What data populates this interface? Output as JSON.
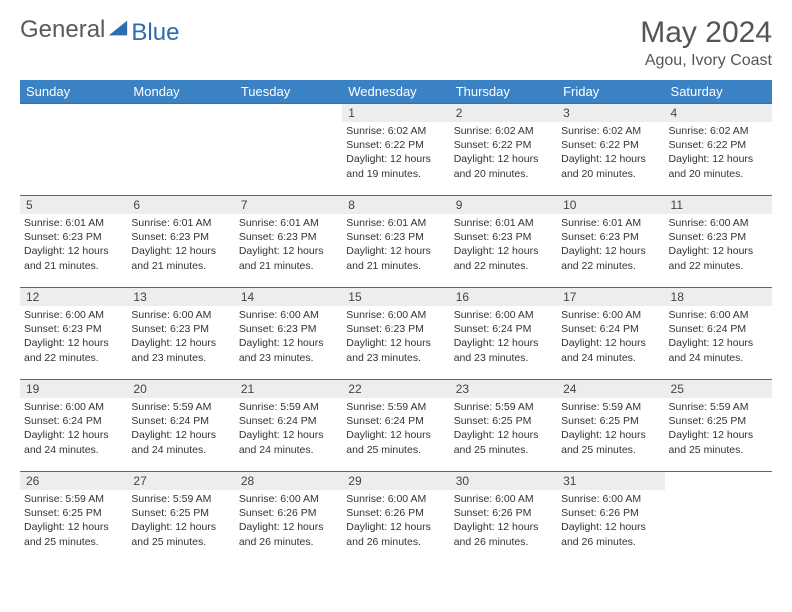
{
  "brand": {
    "name_a": "General",
    "name_b": "Blue"
  },
  "title": "May 2024",
  "location": "Agou, Ivory Coast",
  "colors": {
    "header_bg": "#3b82c4",
    "header_text": "#ffffff",
    "row_border": "#3b6fa0",
    "daynum_bg": "#ededed",
    "body_text": "#333333",
    "logo_gray": "#5a5a5a",
    "logo_blue": "#2e6bb0"
  },
  "weekdays": [
    "Sunday",
    "Monday",
    "Tuesday",
    "Wednesday",
    "Thursday",
    "Friday",
    "Saturday"
  ],
  "layout": {
    "first_weekday_index": 3,
    "days_in_month": 31
  },
  "days": {
    "1": {
      "sunrise": "6:02 AM",
      "sunset": "6:22 PM",
      "daylight": "12 hours and 19 minutes."
    },
    "2": {
      "sunrise": "6:02 AM",
      "sunset": "6:22 PM",
      "daylight": "12 hours and 20 minutes."
    },
    "3": {
      "sunrise": "6:02 AM",
      "sunset": "6:22 PM",
      "daylight": "12 hours and 20 minutes."
    },
    "4": {
      "sunrise": "6:02 AM",
      "sunset": "6:22 PM",
      "daylight": "12 hours and 20 minutes."
    },
    "5": {
      "sunrise": "6:01 AM",
      "sunset": "6:23 PM",
      "daylight": "12 hours and 21 minutes."
    },
    "6": {
      "sunrise": "6:01 AM",
      "sunset": "6:23 PM",
      "daylight": "12 hours and 21 minutes."
    },
    "7": {
      "sunrise": "6:01 AM",
      "sunset": "6:23 PM",
      "daylight": "12 hours and 21 minutes."
    },
    "8": {
      "sunrise": "6:01 AM",
      "sunset": "6:23 PM",
      "daylight": "12 hours and 21 minutes."
    },
    "9": {
      "sunrise": "6:01 AM",
      "sunset": "6:23 PM",
      "daylight": "12 hours and 22 minutes."
    },
    "10": {
      "sunrise": "6:01 AM",
      "sunset": "6:23 PM",
      "daylight": "12 hours and 22 minutes."
    },
    "11": {
      "sunrise": "6:00 AM",
      "sunset": "6:23 PM",
      "daylight": "12 hours and 22 minutes."
    },
    "12": {
      "sunrise": "6:00 AM",
      "sunset": "6:23 PM",
      "daylight": "12 hours and 22 minutes."
    },
    "13": {
      "sunrise": "6:00 AM",
      "sunset": "6:23 PM",
      "daylight": "12 hours and 23 minutes."
    },
    "14": {
      "sunrise": "6:00 AM",
      "sunset": "6:23 PM",
      "daylight": "12 hours and 23 minutes."
    },
    "15": {
      "sunrise": "6:00 AM",
      "sunset": "6:23 PM",
      "daylight": "12 hours and 23 minutes."
    },
    "16": {
      "sunrise": "6:00 AM",
      "sunset": "6:24 PM",
      "daylight": "12 hours and 23 minutes."
    },
    "17": {
      "sunrise": "6:00 AM",
      "sunset": "6:24 PM",
      "daylight": "12 hours and 24 minutes."
    },
    "18": {
      "sunrise": "6:00 AM",
      "sunset": "6:24 PM",
      "daylight": "12 hours and 24 minutes."
    },
    "19": {
      "sunrise": "6:00 AM",
      "sunset": "6:24 PM",
      "daylight": "12 hours and 24 minutes."
    },
    "20": {
      "sunrise": "5:59 AM",
      "sunset": "6:24 PM",
      "daylight": "12 hours and 24 minutes."
    },
    "21": {
      "sunrise": "5:59 AM",
      "sunset": "6:24 PM",
      "daylight": "12 hours and 24 minutes."
    },
    "22": {
      "sunrise": "5:59 AM",
      "sunset": "6:24 PM",
      "daylight": "12 hours and 25 minutes."
    },
    "23": {
      "sunrise": "5:59 AM",
      "sunset": "6:25 PM",
      "daylight": "12 hours and 25 minutes."
    },
    "24": {
      "sunrise": "5:59 AM",
      "sunset": "6:25 PM",
      "daylight": "12 hours and 25 minutes."
    },
    "25": {
      "sunrise": "5:59 AM",
      "sunset": "6:25 PM",
      "daylight": "12 hours and 25 minutes."
    },
    "26": {
      "sunrise": "5:59 AM",
      "sunset": "6:25 PM",
      "daylight": "12 hours and 25 minutes."
    },
    "27": {
      "sunrise": "5:59 AM",
      "sunset": "6:25 PM",
      "daylight": "12 hours and 25 minutes."
    },
    "28": {
      "sunrise": "6:00 AM",
      "sunset": "6:26 PM",
      "daylight": "12 hours and 26 minutes."
    },
    "29": {
      "sunrise": "6:00 AM",
      "sunset": "6:26 PM",
      "daylight": "12 hours and 26 minutes."
    },
    "30": {
      "sunrise": "6:00 AM",
      "sunset": "6:26 PM",
      "daylight": "12 hours and 26 minutes."
    },
    "31": {
      "sunrise": "6:00 AM",
      "sunset": "6:26 PM",
      "daylight": "12 hours and 26 minutes."
    }
  },
  "labels": {
    "sunrise": "Sunrise: ",
    "sunset": "Sunset: ",
    "daylight": "Daylight: "
  }
}
